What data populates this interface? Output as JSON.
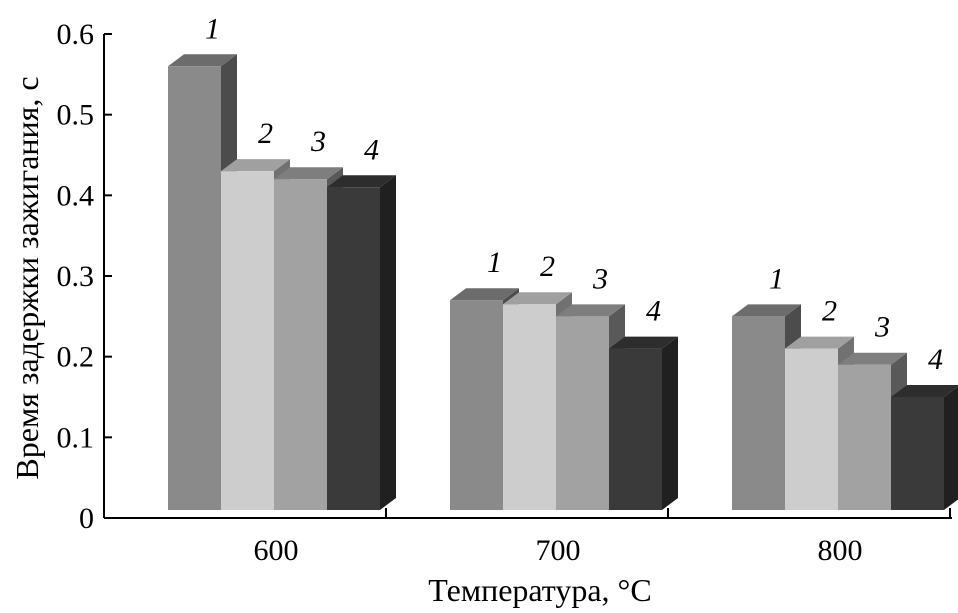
{
  "chart_data": {
    "type": "bar",
    "style": "3d-clustered",
    "xlabel": "Температура, °C",
    "ylabel": "Время задержки зажигания, с",
    "categories": [
      "600",
      "700",
      "800"
    ],
    "yticks": [
      "0",
      "0.1",
      "0.2",
      "0.3",
      "0.4",
      "0.5",
      "0.6"
    ],
    "ylim": [
      0,
      0.6
    ],
    "grid": false,
    "series": [
      {
        "label": "1",
        "color": "#8a8a8a",
        "values": [
          0.56,
          0.27,
          0.25
        ]
      },
      {
        "label": "2",
        "color": "#cdcdcd",
        "values": [
          0.43,
          0.265,
          0.21
        ]
      },
      {
        "label": "3",
        "color": "#a2a2a2",
        "values": [
          0.42,
          0.25,
          0.19
        ]
      },
      {
        "label": "4",
        "color": "#3a3a3a",
        "values": [
          0.41,
          0.21,
          0.15
        ]
      }
    ]
  }
}
